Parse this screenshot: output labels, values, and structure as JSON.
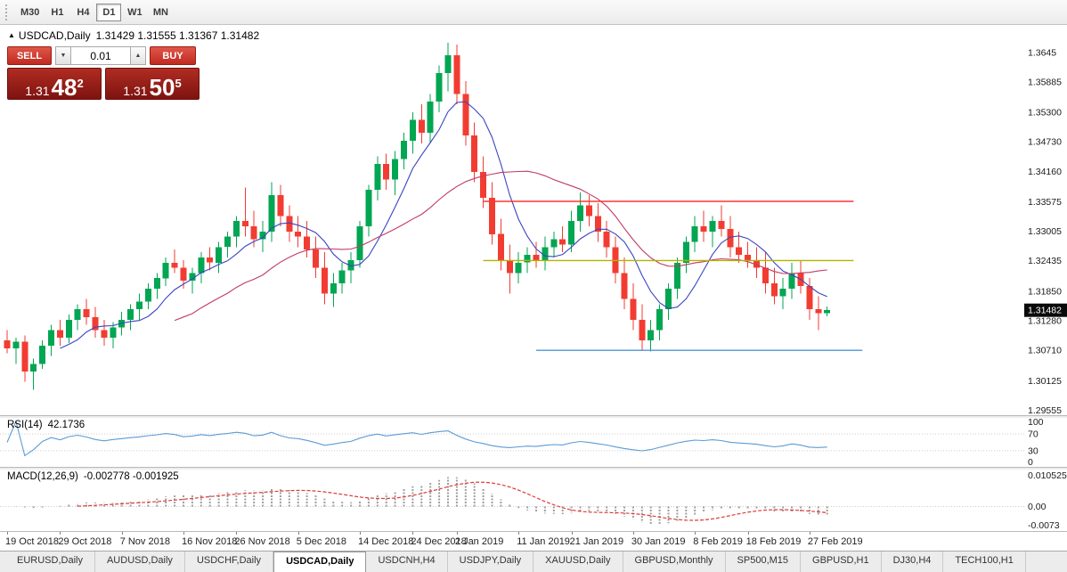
{
  "toolbar": {
    "timeframes": [
      {
        "label": "M30",
        "active": false
      },
      {
        "label": "H1",
        "active": false
      },
      {
        "label": "H4",
        "active": false
      },
      {
        "label": "D1",
        "active": true
      },
      {
        "label": "W1",
        "active": false
      },
      {
        "label": "MN",
        "active": false
      }
    ]
  },
  "chart_header": {
    "marker": "▲",
    "symbol": "USDCAD,Daily",
    "ohlc": "1.31429 1.31555 1.31367 1.31482"
  },
  "trade_panel": {
    "sell_label": "SELL",
    "buy_label": "BUY",
    "volume": "0.01",
    "decrease_icon": "▼",
    "increase_icon": "▲",
    "bid": {
      "prefix": "1.31",
      "big": "48",
      "sup": "2"
    },
    "ask": {
      "prefix": "1.31",
      "big": "50",
      "sup": "5"
    }
  },
  "chart_data": {
    "type": "candlestick",
    "symbol": "USDCAD",
    "timeframe": "Daily",
    "colors": {
      "bull": "#00a651",
      "bear": "#f23c32"
    },
    "y_range": [
      1.2946,
      1.3698
    ],
    "candles": [
      [
        1.309,
        1.311,
        1.3065,
        1.3075
      ],
      [
        1.3075,
        1.3095,
        1.3045,
        1.3088
      ],
      [
        1.3088,
        1.31,
        1.301,
        1.303
      ],
      [
        1.303,
        1.3055,
        1.2995,
        1.3045
      ],
      [
        1.3045,
        1.309,
        1.3035,
        1.308
      ],
      [
        1.308,
        1.312,
        1.306,
        1.311
      ],
      [
        1.311,
        1.313,
        1.308,
        1.3095
      ],
      [
        1.3095,
        1.314,
        1.3085,
        1.313
      ],
      [
        1.313,
        1.316,
        1.311,
        1.315
      ],
      [
        1.315,
        1.317,
        1.312,
        1.3135
      ],
      [
        1.3135,
        1.3155,
        1.3095,
        1.311
      ],
      [
        1.311,
        1.313,
        1.308,
        1.3095
      ],
      [
        1.3095,
        1.3125,
        1.3075,
        1.3115
      ],
      [
        1.3115,
        1.3145,
        1.31,
        1.313
      ],
      [
        1.313,
        1.316,
        1.311,
        1.315
      ],
      [
        1.315,
        1.318,
        1.313,
        1.3165
      ],
      [
        1.3165,
        1.32,
        1.315,
        1.319
      ],
      [
        1.319,
        1.322,
        1.317,
        1.321
      ],
      [
        1.321,
        1.325,
        1.3195,
        1.324
      ],
      [
        1.324,
        1.3265,
        1.322,
        1.323
      ],
      [
        1.323,
        1.3245,
        1.319,
        1.3205
      ],
      [
        1.3205,
        1.323,
        1.318,
        1.322
      ],
      [
        1.322,
        1.326,
        1.32,
        1.325
      ],
      [
        1.325,
        1.327,
        1.3225,
        1.324
      ],
      [
        1.324,
        1.328,
        1.322,
        1.327
      ],
      [
        1.327,
        1.33,
        1.325,
        1.329
      ],
      [
        1.329,
        1.333,
        1.327,
        1.332
      ],
      [
        1.332,
        1.3385,
        1.329,
        1.331
      ],
      [
        1.331,
        1.334,
        1.327,
        1.3285
      ],
      [
        1.3285,
        1.332,
        1.326,
        1.33
      ],
      [
        1.33,
        1.3395,
        1.328,
        1.337
      ],
      [
        1.337,
        1.339,
        1.331,
        1.333
      ],
      [
        1.333,
        1.335,
        1.328,
        1.33
      ],
      [
        1.33,
        1.333,
        1.327,
        1.329
      ],
      [
        1.329,
        1.332,
        1.325,
        1.3265
      ],
      [
        1.3265,
        1.329,
        1.321,
        1.323
      ],
      [
        1.323,
        1.326,
        1.316,
        1.318
      ],
      [
        1.318,
        1.322,
        1.3155,
        1.32
      ],
      [
        1.32,
        1.324,
        1.318,
        1.3225
      ],
      [
        1.3225,
        1.326,
        1.32,
        1.3245
      ],
      [
        1.3245,
        1.332,
        1.323,
        1.331
      ],
      [
        1.331,
        1.339,
        1.329,
        1.338
      ],
      [
        1.338,
        1.3445,
        1.336,
        1.343
      ],
      [
        1.343,
        1.345,
        1.338,
        1.34
      ],
      [
        1.34,
        1.3455,
        1.337,
        1.344
      ],
      [
        1.344,
        1.349,
        1.342,
        1.3475
      ],
      [
        1.3475,
        1.353,
        1.345,
        1.3515
      ],
      [
        1.3515,
        1.3545,
        1.347,
        1.349
      ],
      [
        1.349,
        1.3565,
        1.347,
        1.355
      ],
      [
        1.355,
        1.362,
        1.353,
        1.3605
      ],
      [
        1.3605,
        1.3664,
        1.357,
        1.364
      ],
      [
        1.364,
        1.366,
        1.3545,
        1.3565
      ],
      [
        1.3565,
        1.359,
        1.3465,
        1.3485
      ],
      [
        1.3485,
        1.351,
        1.3395,
        1.3415
      ],
      [
        1.3415,
        1.3445,
        1.3345,
        1.3365
      ],
      [
        1.3365,
        1.3395,
        1.3275,
        1.3295
      ],
      [
        1.3295,
        1.3325,
        1.3225,
        1.3245
      ],
      [
        1.3245,
        1.3275,
        1.318,
        1.322
      ],
      [
        1.322,
        1.326,
        1.32,
        1.324
      ],
      [
        1.324,
        1.327,
        1.322,
        1.3255
      ],
      [
        1.3255,
        1.328,
        1.323,
        1.3245
      ],
      [
        1.3245,
        1.329,
        1.3225,
        1.327
      ],
      [
        1.327,
        1.33,
        1.325,
        1.3285
      ],
      [
        1.3285,
        1.331,
        1.326,
        1.3275
      ],
      [
        1.3275,
        1.334,
        1.326,
        1.332
      ],
      [
        1.332,
        1.3375,
        1.33,
        1.335
      ],
      [
        1.335,
        1.337,
        1.331,
        1.333
      ],
      [
        1.333,
        1.3355,
        1.328,
        1.33
      ],
      [
        1.33,
        1.332,
        1.325,
        1.327
      ],
      [
        1.327,
        1.329,
        1.32,
        1.322
      ],
      [
        1.322,
        1.325,
        1.315,
        1.317
      ],
      [
        1.317,
        1.32,
        1.311,
        1.313
      ],
      [
        1.313,
        1.316,
        1.307,
        1.309
      ],
      [
        1.309,
        1.313,
        1.3069,
        1.311
      ],
      [
        1.311,
        1.316,
        1.309,
        1.315
      ],
      [
        1.315,
        1.32,
        1.313,
        1.319
      ],
      [
        1.319,
        1.325,
        1.317,
        1.324
      ],
      [
        1.324,
        1.329,
        1.322,
        1.328
      ],
      [
        1.328,
        1.333,
        1.326,
        1.331
      ],
      [
        1.331,
        1.334,
        1.328,
        1.33
      ],
      [
        1.33,
        1.333,
        1.327,
        1.332
      ],
      [
        1.332,
        1.335,
        1.329,
        1.3305
      ],
      [
        1.3305,
        1.333,
        1.325,
        1.327
      ],
      [
        1.327,
        1.33,
        1.324,
        1.3255
      ],
      [
        1.3255,
        1.328,
        1.323,
        1.3245
      ],
      [
        1.3245,
        1.327,
        1.321,
        1.323
      ],
      [
        1.323,
        1.326,
        1.318,
        1.32
      ],
      [
        1.32,
        1.323,
        1.316,
        1.3175
      ],
      [
        1.3175,
        1.321,
        1.315,
        1.319
      ],
      [
        1.319,
        1.324,
        1.317,
        1.322
      ],
      [
        1.322,
        1.3245,
        1.318,
        1.3195
      ],
      [
        1.3195,
        1.321,
        1.313,
        1.315
      ],
      [
        1.315,
        1.3175,
        1.311,
        1.3143
      ],
      [
        1.31429,
        1.31555,
        1.31367,
        1.31482
      ]
    ],
    "moving_averages": [
      {
        "name": "ma-fast-line",
        "period": 7,
        "color": "#3a45c0"
      },
      {
        "name": "ma-slow-line",
        "period": 20,
        "color": "#c13a66"
      }
    ],
    "hlines": [
      {
        "name": "resistance-line",
        "price": 1.3358,
        "color": "#ff3633",
        "from_index": 54,
        "to_index": 96
      },
      {
        "name": "mid-support-line",
        "price": 1.3244,
        "color": "#b3b300",
        "from_index": 54,
        "to_index": 96
      },
      {
        "name": "lower-support-line",
        "price": 1.3071,
        "color": "#4f96d8",
        "from_index": 60,
        "to_index": 97
      }
    ],
    "price_axis": {
      "labels": [
        {
          "text": "1.3645",
          "value": 1.3645
        },
        {
          "text": "1.35885",
          "value": 1.35885
        },
        {
          "text": "1.35300",
          "value": 1.353
        },
        {
          "text": "1.34730",
          "value": 1.3473
        },
        {
          "text": "1.34160",
          "value": 1.3416
        },
        {
          "text": "1.33575",
          "value": 1.33575
        },
        {
          "text": "1.33005",
          "value": 1.33005
        },
        {
          "text": "1.32435",
          "value": 1.32435
        },
        {
          "text": "1.31850",
          "value": 1.3185
        },
        {
          "text": "1.31280",
          "value": 1.3128
        },
        {
          "text": "1.30710",
          "value": 1.3071
        },
        {
          "text": "1.30125",
          "value": 1.30125
        },
        {
          "text": "1.29555",
          "value": 1.29555
        }
      ],
      "current": {
        "text": "1.31482",
        "value": 1.31482
      }
    },
    "date_labels": [
      {
        "text": "19 Oct 2018",
        "index": 0
      },
      {
        "text": "29 Oct 2018",
        "index": 6
      },
      {
        "text": "7 Nov 2018",
        "index": 13
      },
      {
        "text": "16 Nov 2018",
        "index": 20
      },
      {
        "text": "26 Nov 2018",
        "index": 26
      },
      {
        "text": "5 Dec 2018",
        "index": 33
      },
      {
        "text": "14 Dec 2018",
        "index": 40
      },
      {
        "text": "24 Dec 2018",
        "index": 46
      },
      {
        "text": "2 Jan 2019",
        "index": 51
      },
      {
        "text": "11 Jan 2019",
        "index": 58
      },
      {
        "text": "21 Jan 2019",
        "index": 64
      },
      {
        "text": "30 Jan 2019",
        "index": 71
      },
      {
        "text": "8 Feb 2019",
        "index": 78
      },
      {
        "text": "18 Feb 2019",
        "index": 84
      },
      {
        "text": "27 Feb 2019",
        "index": 91
      }
    ]
  },
  "rsi_panel": {
    "name": "RSI(14)",
    "value": "42.1736",
    "period": 14,
    "line_color": "#5b9bd5",
    "levels": [
      {
        "text": "100",
        "value": 100,
        "dotted": false
      },
      {
        "text": "70",
        "value": 70,
        "dotted": true
      },
      {
        "text": "30",
        "value": 30,
        "dotted": true
      },
      {
        "text": "0",
        "value": 0,
        "dotted": false
      }
    ]
  },
  "macd_panel": {
    "name": "MACD(12,26,9)",
    "values": "-0.002778 -0.001925",
    "fast": 12,
    "slow": 26,
    "signal": 9,
    "histogram_color": "#9e9e9e",
    "signal_color": "#e23a3a",
    "axis_labels": {
      "max": "0.010525",
      "zero": "0.00",
      "min": "-0.0073"
    }
  },
  "bottom_tabs": [
    {
      "label": "EURUSD,Daily",
      "active": false
    },
    {
      "label": "AUDUSD,Daily",
      "active": false
    },
    {
      "label": "USDCHF,Daily",
      "active": false
    },
    {
      "label": "USDCAD,Daily",
      "active": true
    },
    {
      "label": "USDCNH,H4",
      "active": false
    },
    {
      "label": "USDJPY,Daily",
      "active": false
    },
    {
      "label": "XAUUSD,Daily",
      "active": false
    },
    {
      "label": "GBPUSD,Monthly",
      "active": false
    },
    {
      "label": "SP500,M15",
      "active": false
    },
    {
      "label": "GBPUSD,H1",
      "active": false
    },
    {
      "label": "DJ30,H4",
      "active": false
    },
    {
      "label": "TECH100,H1",
      "active": false
    }
  ]
}
